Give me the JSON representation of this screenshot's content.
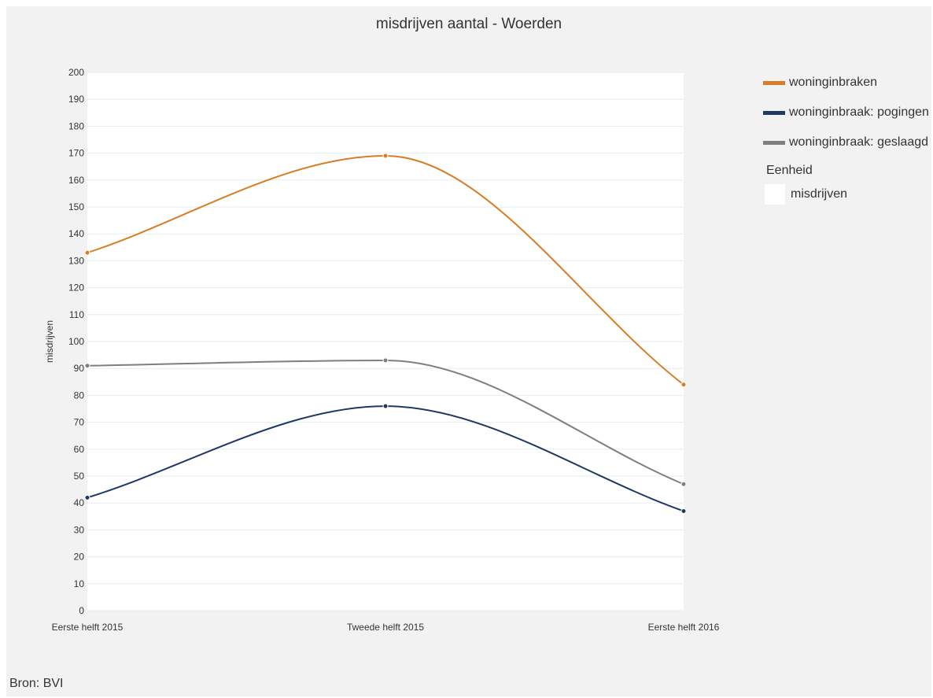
{
  "chart_data": {
    "type": "line",
    "title": "misdrijven aantal - Woerden",
    "ylabel": "misdrijven",
    "xlabel": "",
    "ylim": [
      0,
      200
    ],
    "y_ticks": [
      "0",
      "10",
      "20",
      "30",
      "40",
      "50",
      "60",
      "70",
      "80",
      "90",
      "100",
      "110",
      "120",
      "130",
      "140",
      "150",
      "160",
      "170",
      "180",
      "190",
      "200"
    ],
    "categories": [
      "Eerste helft 2015",
      "Tweede helft 2015",
      "Eerste helft 2016"
    ],
    "series": [
      {
        "name": "woninginbraken",
        "color": "#d87d27",
        "values": [
          133,
          169,
          84
        ]
      },
      {
        "name": "woninginbraak: pogingen",
        "color": "#1f3864",
        "values": [
          42,
          76,
          37
        ]
      },
      {
        "name": "woninginbraak: geslaagd",
        "color": "#7f7f7f",
        "values": [
          91,
          93,
          47
        ]
      }
    ],
    "grid": true,
    "legend_position": "right"
  },
  "legend": {
    "unit_title": "Eenheid",
    "unit_label": "misdrijven"
  },
  "source": "Bron: BVI"
}
